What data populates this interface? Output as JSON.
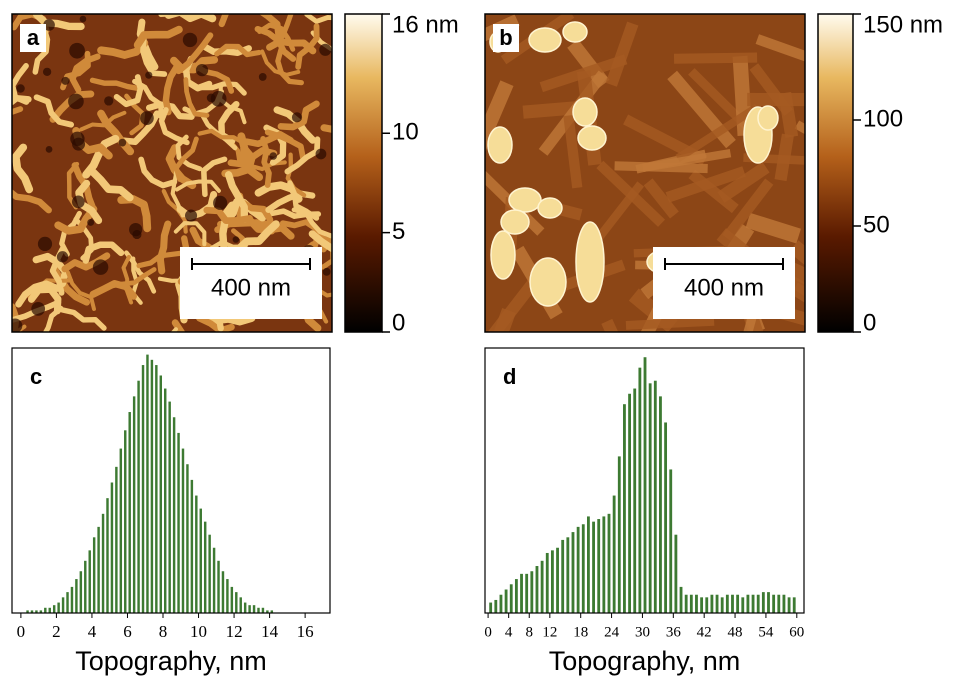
{
  "chart_data": [
    {
      "type": "image",
      "label": "a",
      "scale_bar": "400 nm",
      "clim": [
        0,
        16
      ],
      "cticks": [
        0,
        5,
        10,
        {
          "value": 16,
          "label": "16 nm"
        }
      ]
    },
    {
      "type": "image",
      "label": "b",
      "scale_bar": "400 nm",
      "clim": [
        0,
        150
      ],
      "cticks": [
        0,
        50,
        100,
        {
          "value": 150,
          "label": "150 nm"
        }
      ]
    },
    {
      "type": "histogram",
      "label": "c",
      "xlabel": "Topography, nm",
      "color": "#3d7a32",
      "bins": [
        0.25,
        0.5,
        0.75,
        1,
        1.25,
        1.5,
        1.75,
        2,
        2.25,
        2.5,
        2.75,
        3,
        3.25,
        3.5,
        3.75,
        4,
        4.25,
        4.5,
        4.75,
        5,
        5.25,
        5.5,
        5.75,
        6,
        6.25,
        6.5,
        6.75,
        7,
        7.25,
        7.5,
        7.75,
        8,
        8.25,
        8.5,
        8.75,
        9,
        9.25,
        9.5,
        9.75,
        10,
        10.25,
        10.5,
        10.75,
        11,
        11.25,
        11.5,
        11.75,
        12,
        12.25,
        12.5,
        12.75,
        13,
        13.25,
        13.5,
        13.75,
        14,
        14.25
      ],
      "counts": [
        1,
        1,
        1,
        1,
        2,
        2,
        3,
        4,
        6,
        8,
        10,
        13,
        16,
        20,
        24,
        29,
        33,
        38,
        44,
        50,
        56,
        63,
        70,
        77,
        83,
        89,
        95,
        99,
        97,
        95,
        91,
        86,
        81,
        75,
        69,
        63,
        57,
        51,
        45,
        40,
        35,
        30,
        25,
        20,
        16,
        13,
        10,
        8,
        6,
        4,
        3,
        3,
        2,
        2,
        1,
        1
      ],
      "xlim": [
        -0.5,
        17.4
      ],
      "xticks": [
        0,
        2,
        4,
        6,
        8,
        10,
        12,
        14,
        16
      ],
      "ylim": [
        0,
        100
      ]
    },
    {
      "type": "histogram",
      "label": "d",
      "xlabel": "Topography, nm",
      "color": "#3d7a32",
      "bins": [
        0,
        1,
        2,
        3,
        4,
        5,
        6,
        7,
        8,
        9,
        10,
        11,
        12,
        13,
        14,
        15,
        16,
        17,
        18,
        19,
        20,
        21,
        22,
        23,
        24,
        25,
        26,
        27,
        28,
        29,
        30,
        31,
        32,
        33,
        34,
        35,
        36,
        37,
        38,
        39,
        40,
        41,
        42,
        43,
        44,
        45,
        46,
        47,
        48,
        49,
        50,
        51,
        52,
        53,
        54,
        55,
        56,
        57,
        58,
        59,
        60
      ],
      "counts": [
        4,
        5,
        7,
        9,
        11,
        13,
        15,
        15,
        16,
        18,
        20,
        23,
        24,
        25,
        28,
        29,
        31,
        33,
        34,
        37,
        35,
        36,
        37,
        38,
        45,
        60,
        80,
        84,
        86,
        94,
        98,
        88,
        89,
        83,
        73,
        55,
        30,
        10,
        7,
        7,
        7,
        6,
        6,
        7,
        7,
        6,
        7,
        7,
        7,
        6,
        7,
        7,
        7,
        8,
        8,
        7,
        7,
        7,
        6,
        6
      ],
      "xlim": [
        -0.6,
        61.4
      ],
      "xticks": [
        0,
        4,
        8,
        12,
        18,
        24,
        30,
        36,
        42,
        48,
        54,
        60
      ],
      "ylim": [
        0,
        100
      ]
    }
  ]
}
